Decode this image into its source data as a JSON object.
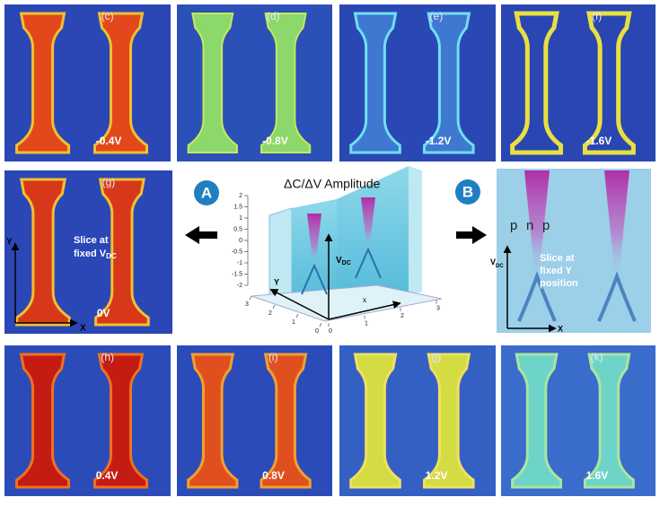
{
  "top_row": [
    {
      "label": "(c)",
      "voltage": "-0.4V"
    },
    {
      "label": "(d)",
      "voltage": "-0.8V"
    },
    {
      "label": "(e)",
      "voltage": "-1.2V"
    },
    {
      "label": "(f)",
      "voltage": "-1.6V"
    }
  ],
  "slice_vdc": {
    "label": "(g)",
    "voltage": "0V",
    "note": [
      "Slice at",
      {
        "text": "fixed V",
        "sub": "DC"
      }
    ],
    "axis_y": "Y",
    "axis_x": "X"
  },
  "markers": [
    "A",
    "B"
  ],
  "plot3d": {
    "title": "ΔC/ΔV Amplitude",
    "vdc_ticks": [
      2,
      1.5,
      1,
      0.5,
      0,
      -0.5,
      -1,
      -1.5,
      -2
    ],
    "y_ticks": [
      3,
      2,
      1,
      0
    ],
    "x_ticks": [
      0,
      1,
      2,
      3
    ],
    "axis_vdc": {
      "text": "V",
      "sub": "DC"
    },
    "axis_x": "x",
    "axis_y": "Y"
  },
  "slice_y": {
    "regions": [
      "p",
      "n",
      "p"
    ],
    "note": [
      "Slice at",
      "fixed Y",
      "position"
    ],
    "axis_y": {
      "text": "V",
      "sub": "DC"
    },
    "axis_x": "X"
  },
  "bottom_row": [
    {
      "label": "(h)",
      "voltage": "0.4V"
    },
    {
      "label": "(i)",
      "voltage": "0.8V"
    },
    {
      "label": "(j)",
      "voltage": "1.2V"
    },
    {
      "label": "(k)",
      "voltage": "1.6V"
    }
  ]
}
